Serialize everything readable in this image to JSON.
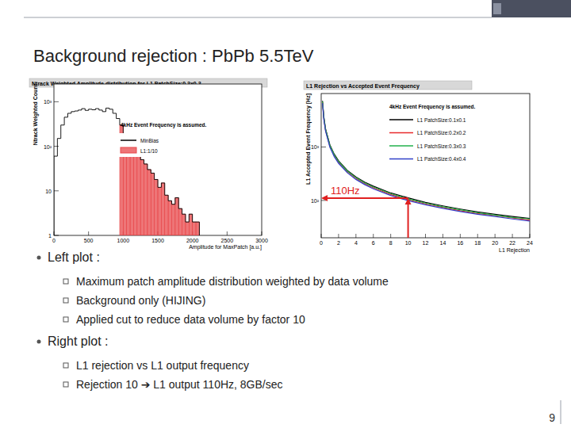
{
  "slide": {
    "title": "Background rejection : PbPb 5.5TeV",
    "page": "9",
    "bullets": [
      {
        "text": "Left plot :",
        "items": [
          "Maximum patch amplitude distribution weighted by data volume",
          "Background only (HIJING)",
          "Applied cut to reduce data volume by factor 10"
        ]
      },
      {
        "text": "Right plot :",
        "items": [
          "L1 rejection vs L1 output frequency",
          "Rejection 10 ➔ L1 output 110Hz,  8GB/sec"
        ]
      }
    ]
  },
  "chart_data": [
    {
      "type": "histogram",
      "title": "Ntrack Weighted Amplitude distribution for L1 PatchSize:0.3x0.3",
      "x_label": "Amplitude for MaxPatch [a.u.]",
      "y_label": "Ntrack Weighted Count",
      "annotations": [
        {
          "text": "4kHz Event Frequency is assumed."
        }
      ],
      "bins": [
        0,
        50,
        100,
        150,
        200,
        250,
        300,
        350,
        400,
        450,
        500,
        550,
        600,
        650,
        700,
        750,
        800,
        850,
        900,
        950,
        1000,
        1050,
        1100,
        1150,
        1200,
        1250,
        1300,
        1350,
        1400,
        1450,
        1500,
        1550,
        1600,
        1650,
        1700,
        1750,
        1800,
        1850,
        1900,
        1950,
        2000,
        2050,
        2100
      ],
      "series": [
        {
          "name": "MinBias",
          "color": "#000000",
          "type": "step",
          "values": [
            60,
            150,
            300,
            450,
            550,
            600,
            620,
            650,
            700,
            640,
            680,
            660,
            700,
            650,
            600,
            720,
            680,
            550,
            420,
            300,
            150,
            120,
            100,
            80,
            70,
            50,
            40,
            30,
            25,
            18,
            12,
            15,
            8,
            6,
            5,
            7,
            4,
            3,
            2,
            3,
            2,
            2
          ]
        },
        {
          "name": "L1:1/10",
          "color": "#e8474a",
          "type": "bar",
          "values": [
            null,
            null,
            null,
            null,
            null,
            null,
            null,
            null,
            null,
            null,
            null,
            null,
            null,
            null,
            null,
            null,
            null,
            null,
            null,
            300,
            150,
            120,
            100,
            80,
            70,
            50,
            40,
            30,
            25,
            18,
            12,
            15,
            8,
            6,
            5,
            7,
            4,
            3,
            2,
            3,
            2,
            2
          ]
        }
      ],
      "xlim": [
        0,
        3000
      ],
      "xticks": [
        0,
        500,
        1000,
        1500,
        2000,
        2500,
        3000
      ],
      "ylim": [
        1,
        2500
      ],
      "yticks": [
        {
          "value": 1,
          "label": "1"
        },
        {
          "value": 10,
          "label": "10"
        },
        {
          "value": 100,
          "label": "10²"
        },
        {
          "value": 1000,
          "label": "10³"
        }
      ],
      "log": "y",
      "legend": "upper right"
    },
    {
      "type": "line",
      "title": "L1 Rejection vs Accepted Event Frequency",
      "x_label": "L1 Rejection",
      "y_label": "L1 Accepted Event Frequency [Hz]",
      "annotations": [
        {
          "text": "4kHz Event Frequency is assumed."
        },
        {
          "text": "110Hz",
          "x": 10,
          "y": 110
        }
      ],
      "x": [
        0.15,
        0.3,
        0.5,
        1,
        1.5,
        2,
        3,
        4,
        5,
        6,
        8,
        10,
        12,
        14,
        16,
        18,
        20,
        22,
        24
      ],
      "series": [
        {
          "name": "L1 PatchSize:0.1x0.1",
          "color": "#000000",
          "values": [
            7300,
            3700,
            2200,
            1100,
            735,
            550,
            365,
            275,
            220,
            185,
            138,
            112,
            92,
            79,
            69,
            61,
            55,
            50,
            46
          ]
        },
        {
          "name": "L1 PatchSize:0.2x0.2",
          "color": "#e8282b",
          "values": [
            6900,
            3450,
            2050,
            1030,
            690,
            515,
            345,
            258,
            206,
            172,
            129,
            103,
            86,
            74,
            64,
            57,
            52,
            47,
            43
          ]
        },
        {
          "name": "L1 PatchSize:0.3x0.3",
          "color": "#22b14c",
          "values": [
            7100,
            3600,
            2130,
            1070,
            715,
            535,
            355,
            267,
            213,
            178,
            134,
            107,
            89,
            76,
            67,
            59,
            53,
            48,
            45
          ]
        },
        {
          "name": "L1 PatchSize:0.4x0.4",
          "color": "#3040c8",
          "values": [
            6600,
            3300,
            1980,
            990,
            660,
            495,
            330,
            247,
            198,
            165,
            124,
            99,
            83,
            71,
            62,
            55,
            50,
            45,
            41
          ]
        }
      ],
      "xlim": [
        0,
        24
      ],
      "xticks": [
        0,
        2,
        4,
        6,
        8,
        10,
        12,
        14,
        16,
        18,
        20,
        22,
        24
      ],
      "ylim": [
        20,
        10000
      ],
      "yticks": [
        {
          "value": 100,
          "label": "10²"
        },
        {
          "value": 1000,
          "label": "10³"
        }
      ],
      "log": "y",
      "legend": "upper right"
    }
  ]
}
